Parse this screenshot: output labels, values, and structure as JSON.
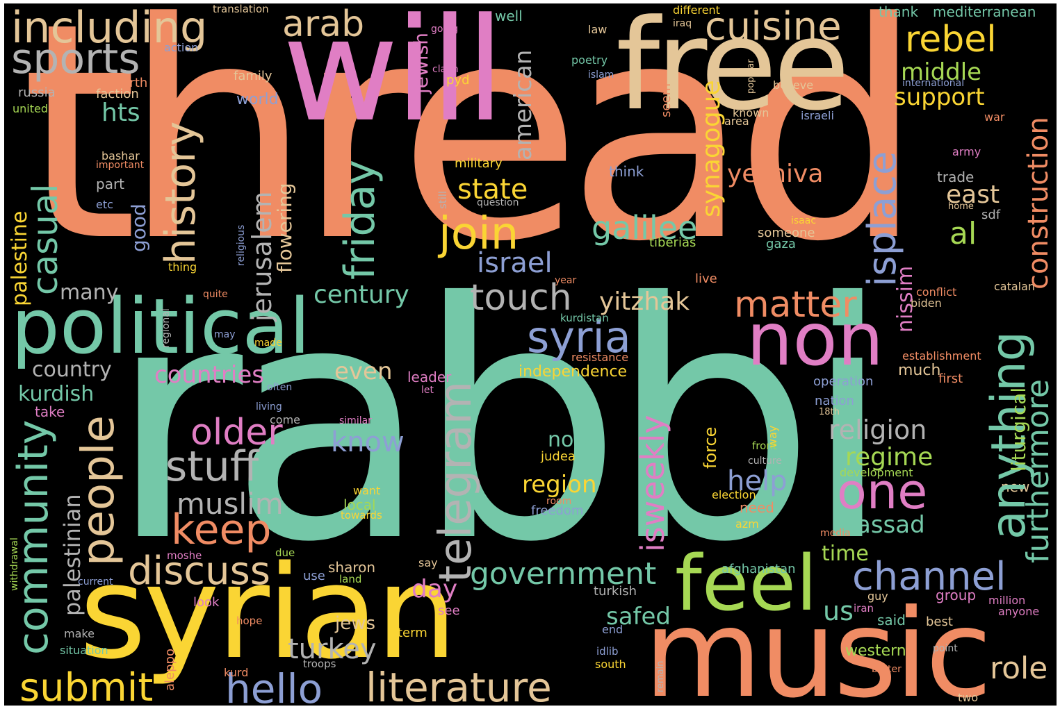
{
  "wordcloud": {
    "background": "#000000",
    "palette": {
      "orange": "#F08C64",
      "teal": "#74C8A8",
      "yellow": "#FAD534",
      "pink": "#E07EC4",
      "tan": "#E4C698",
      "green": "#A6D854",
      "blue": "#8D9FD4",
      "gray": "#B3B3B3"
    },
    "words": {
      "thread": "thread",
      "rabbi": "rabbi",
      "syrian": "syrian",
      "will": "will",
      "free": "free",
      "music": "music",
      "political": "political",
      "non": "non",
      "feel": "feel",
      "including": "including",
      "sports": "sports",
      "arab": "arab",
      "cuisine": "cuisine",
      "rebel": "rebel",
      "middle": "middle",
      "support": "support",
      "hts": "hts",
      "history": "history",
      "friday": "friday",
      "american": "american",
      "synagogue": "synagogue",
      "isplace": "isplace",
      "anything": "anything",
      "construction": "construction",
      "furthermore": "furthermore",
      "liturgical": "liturgical",
      "casual": "casual",
      "palestine": "palestine",
      "community": "community",
      "people": "people",
      "jerusalem": "jerusalem",
      "flowering": "flowering",
      "join": "join",
      "state": "state",
      "yeshiva": "yeshiva",
      "galilee": "galilee",
      "east": "east",
      "al": "al",
      "israel": "israel",
      "touch": "touch",
      "yitzhak": "yitzhak",
      "matter": "matter",
      "century": "century",
      "syria": "syria",
      "telegram": "telegram",
      "isweekly": "isweekly",
      "nissim": "nissim",
      "countries": "countries",
      "country": "country",
      "even": "even",
      "older": "older",
      "know": "know",
      "stuff": "stuff",
      "muslim": "muslim",
      "keep": "keep",
      "discuss": "discuss",
      "government": "government",
      "channel": "channel",
      "one": "one",
      "religion": "religion",
      "regime": "regime",
      "help": "help",
      "assad": "assad",
      "time": "time",
      "submit": "submit",
      "hello": "hello",
      "literature": "literature",
      "turkey": "turkey",
      "role": "role",
      "kurdish": "kurdish",
      "palestinian": "palestinian",
      "region": "region",
      "now": "now",
      "independence": "independence",
      "day": "day",
      "safed": "safed",
      "jews": "jews",
      "western": "western",
      "us": "us",
      "many": "many",
      "good": "good",
      "part": "part",
      "etc": "etc",
      "bashar": "bashar",
      "important": "important",
      "russia": "russia",
      "united": "united",
      "north": "north",
      "faction": "faction",
      "family": "family",
      "world": "world",
      "action": "action",
      "translation": "translation",
      "jewish": "jewish",
      "going": "going",
      "claim": "claim",
      "pyd": "pyd",
      "well": "well",
      "law": "law",
      "different": "different",
      "iraq": "iraq",
      "popular": "popular",
      "poetry": "poetry",
      "islam": "islam",
      "believe": "believe",
      "seem": "seem",
      "thank": "thank",
      "mediterranean": "mediterranean",
      "international": "international",
      "known": "known",
      "area": "area",
      "israeli": "israeli",
      "war": "war",
      "army": "army",
      "trade": "trade",
      "home": "home",
      "sdf": "sdf",
      "isaac": "isaac",
      "someone": "someone",
      "gaza": "gaza",
      "tiberias": "tiberias",
      "military": "military",
      "question": "question",
      "still": "still",
      "think": "think",
      "thing": "thing",
      "religious": "religious",
      "regional": "regional",
      "quite": "quite",
      "may": "may",
      "made": "made",
      "year": "year",
      "live": "live",
      "conflict": "conflict",
      "biden": "biden",
      "catalan": "catalan",
      "kurdistan": "kurdistan",
      "resistance": "resistance",
      "establishment": "establishment",
      "much": "much",
      "first": "first",
      "operation": "operation",
      "nation": "nation",
      "18th": "18th",
      "often": "often",
      "let": "let",
      "leader": "leader",
      "living": "living",
      "come": "come",
      "similar": "similar",
      "take": "take",
      "force": "force",
      "way": "way",
      "front": "front",
      "culture": "culture",
      "development": "development",
      "new": "new",
      "election": "election",
      "need": "need",
      "azm": "azm",
      "media": "media",
      "room": "room",
      "freedom": "freedom",
      "judea": "judea",
      "want": "want",
      "local": "local",
      "towards": "towards",
      "withdrawal": "withdrawal",
      "moshe": "moshe",
      "due": "due",
      "say": "say",
      "sharon": "sharon",
      "use": "use",
      "land": "land",
      "current": "current",
      "afghanistan": "afghanistan",
      "look": "look",
      "turkish": "turkish",
      "guy": "guy",
      "group": "group",
      "million": "million",
      "iran": "iran",
      "anyone": "anyone",
      "said": "said",
      "best": "best",
      "see": "see",
      "hope": "hope",
      "make": "make",
      "term": "term",
      "end": "end",
      "situation": "situation",
      "aleppo": "aleppo",
      "idlib": "idlib",
      "south": "south",
      "kurd": "kurd",
      "troops": "troops",
      "remain": "remain",
      "point": "point",
      "better": "better",
      "two": "two"
    }
  }
}
